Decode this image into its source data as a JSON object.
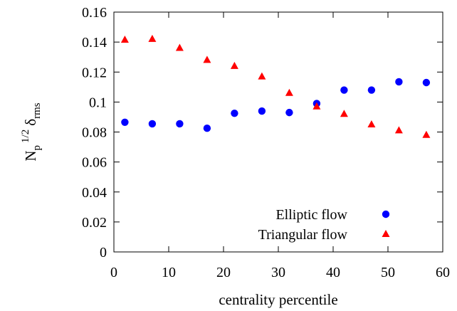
{
  "chart_data": {
    "type": "scatter",
    "title": "",
    "xlabel": "centrality percentile",
    "ylabel": {
      "base": "N",
      "base_sub": "p",
      "exponent": "1/2",
      "symbol": "δ",
      "symbol_sub": "rms"
    },
    "xlim": [
      0,
      60
    ],
    "ylim": [
      0,
      0.16
    ],
    "xticks": [
      "0",
      "10",
      "20",
      "30",
      "40",
      "50",
      "60"
    ],
    "yticks": [
      "0",
      "0.02",
      "0.04",
      "0.06",
      "0.08",
      "0.1",
      "0.12",
      "0.14",
      "0.16"
    ],
    "legend_position": "bottom-right",
    "grid": false,
    "series": [
      {
        "name": "Elliptic flow",
        "marker": "circle",
        "color": "#0000ff",
        "x": [
          2,
          7,
          12,
          17,
          22,
          27,
          32,
          37,
          42,
          47,
          52,
          57
        ],
        "y": [
          0.0865,
          0.0855,
          0.0855,
          0.0825,
          0.0925,
          0.094,
          0.093,
          0.099,
          0.108,
          0.108,
          0.1135,
          0.113
        ]
      },
      {
        "name": "Triangular flow",
        "marker": "triangle",
        "color": "#ff0000",
        "x": [
          2,
          7,
          12,
          17,
          22,
          27,
          32,
          37,
          42,
          47,
          52,
          57
        ],
        "y": [
          0.1415,
          0.142,
          0.136,
          0.128,
          0.124,
          0.117,
          0.106,
          0.097,
          0.092,
          0.085,
          0.081,
          0.078
        ]
      }
    ]
  }
}
